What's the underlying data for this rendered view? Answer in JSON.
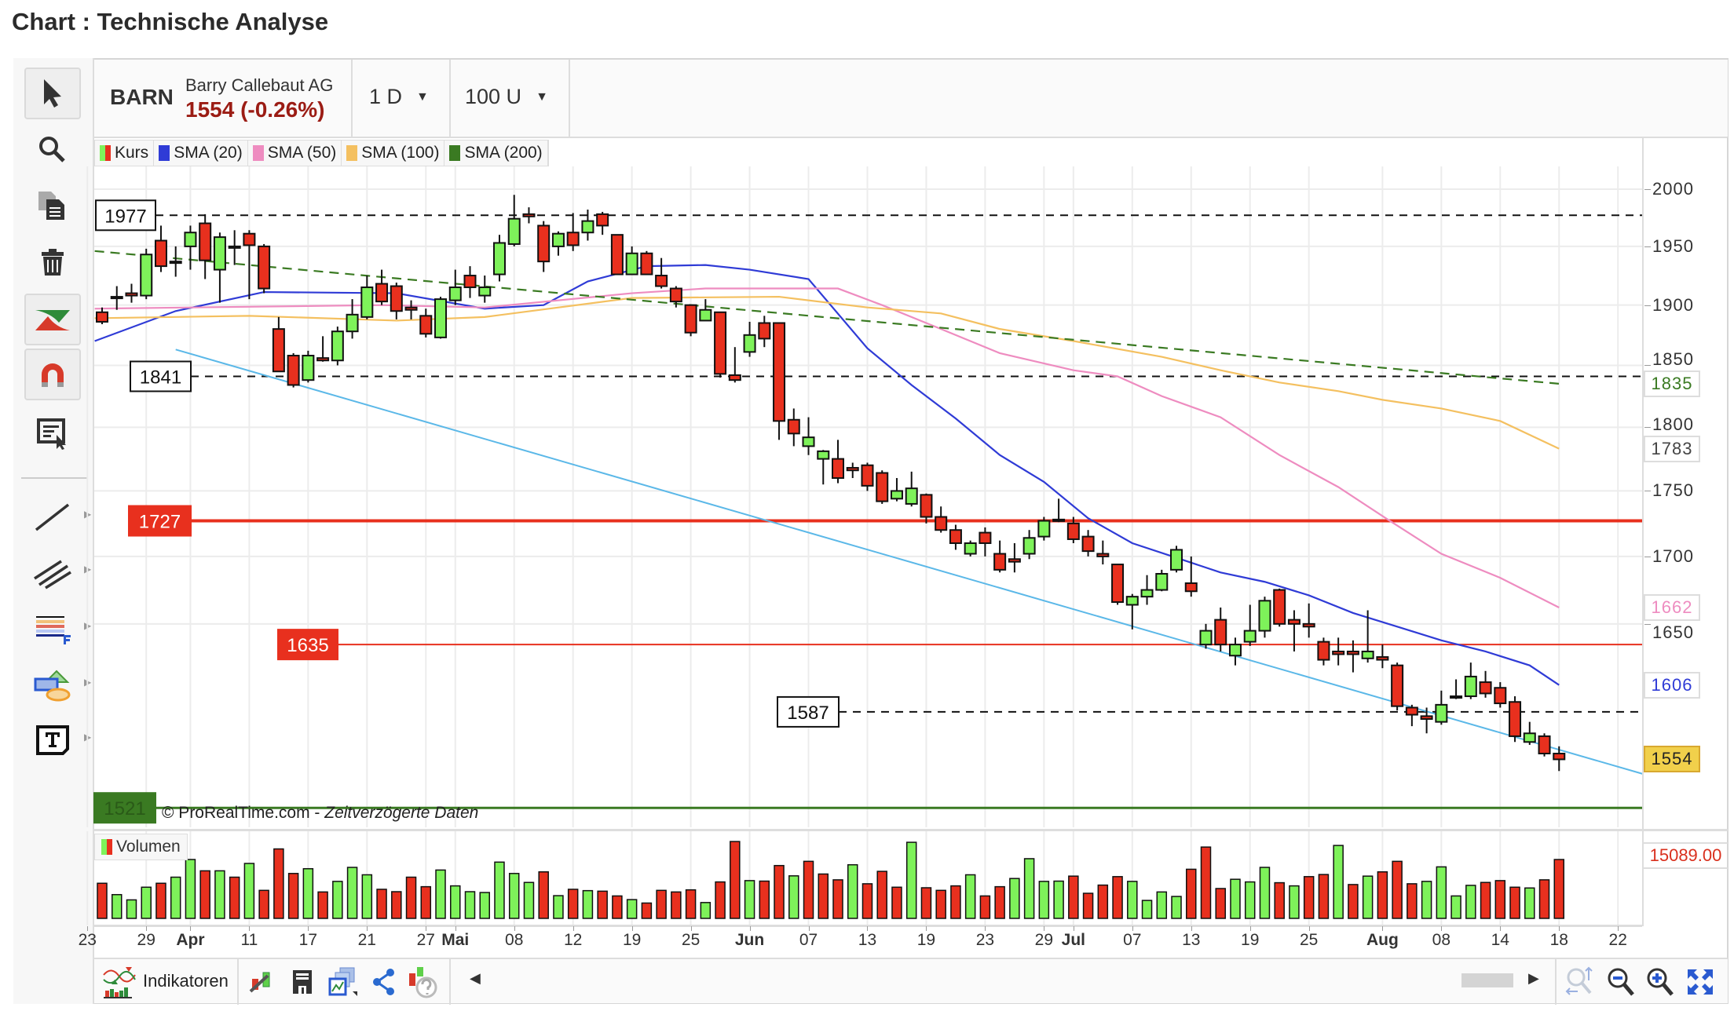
{
  "page_title": "Chart : Technische Analyse",
  "header": {
    "symbol": "BARN",
    "name": "Barry Callebaut AG",
    "price": "1554 (-0.26%)",
    "interval": "1 D",
    "units": "100 U"
  },
  "legend": [
    {
      "label": "Kurs",
      "color": "#e8301e"
    },
    {
      "label": "SMA (20)",
      "color": "#2f3bd6"
    },
    {
      "label": "SMA (50)",
      "color": "#ee8cc0"
    },
    {
      "label": "SMA (100)",
      "color": "#f4c060"
    },
    {
      "label": "SMA (200)",
      "color": "#3a7a22"
    }
  ],
  "price_axis": {
    "ticks": [
      "2000",
      "1950",
      "1900",
      "1850",
      "1800",
      "1750",
      "1700",
      "1650"
    ],
    "tick_values": [
      2000,
      1950,
      1900,
      1850,
      1800,
      1750,
      1700,
      1650
    ]
  },
  "value_boxes": [
    {
      "label": "1835",
      "value": 1835,
      "color": "#3a7a22"
    },
    {
      "label": "1783",
      "value": 1783,
      "color": "#444444"
    },
    {
      "label": "1662",
      "value": 1662,
      "color": "#ee8cc0"
    },
    {
      "label": "1606",
      "value": 1606,
      "color": "#2f3bd6"
    },
    {
      "label": "1554",
      "value": 1554,
      "color": "#222222",
      "bg": "#f1d04b"
    }
  ],
  "levels": [
    {
      "label": "1977",
      "value": 1977,
      "style": "dashed"
    },
    {
      "label": "1841",
      "value": 1841,
      "style": "dashed"
    },
    {
      "label": "1727",
      "value": 1727,
      "style": "red-thick"
    },
    {
      "label": "1635",
      "value": 1635,
      "style": "red-thin"
    },
    {
      "label": "1587",
      "value": 1587,
      "style": "dashed"
    },
    {
      "label": "1521",
      "value": 1521,
      "style": "green"
    }
  ],
  "watermark": {
    "brand": "© ProRealTime.com",
    "sep": " - ",
    "note": "Zeitverzögerte Daten"
  },
  "volume": {
    "label": "Volumen",
    "last": "15089.00",
    "values": [
      9000,
      6090,
      4740,
      7990,
      9000,
      10560,
      15090,
      12190,
      12190,
      10560,
      14080,
      7180,
      17800,
      11510,
      12730,
      6770,
      9480,
      13070,
      11170,
      7450,
      6840,
      10560,
      8120,
      12390,
      8330,
      6840,
      6630,
      14420,
      11510,
      9210,
      11920,
      5820,
      7450,
      7110,
      6970,
      5750,
      4810,
      3930,
      7180,
      6770,
      7310,
      4060,
      9340,
      19700,
      9680,
      9550,
      13540,
      10900,
      14620,
      11370,
      9880,
      13740,
      8870,
      12050,
      7990,
      19500,
      7850,
      7180,
      8330,
      11170,
      5750,
      8120,
      10220,
      15300,
      9480,
      9550,
      10830,
      6430,
      8530,
      10700,
      9480,
      4600,
      6770,
      5620,
      12590,
      18280,
      7650,
      10020,
      9340,
      13070,
      9140,
      8330,
      10700,
      11240,
      18690,
      8670,
      10830,
      11920,
      14620,
      8870,
      9480,
      13200,
      5750,
      8460,
      9210,
      9680,
      7990,
      7790,
      9880,
      15089
    ],
    "colors": "rgggrggrgrgrrrgrgggrrrrgggggggrgrgrrgrrrrgrrgrrgrrrgrrrgrrrgrrggggrrrrggggrrrgggrgrrgrgrrrggggrrrgrr"
  },
  "x_axis": [
    {
      "label": "23",
      "i": -1
    },
    {
      "label": "29",
      "i": 3
    },
    {
      "label": "Apr",
      "i": 6,
      "bold": true
    },
    {
      "label": "11",
      "i": 10
    },
    {
      "label": "17",
      "i": 14
    },
    {
      "label": "21",
      "i": 18
    },
    {
      "label": "27",
      "i": 22
    },
    {
      "label": "Mai",
      "i": 24,
      "bold": true
    },
    {
      "label": "08",
      "i": 28
    },
    {
      "label": "12",
      "i": 32
    },
    {
      "label": "19",
      "i": 36
    },
    {
      "label": "25",
      "i": 40
    },
    {
      "label": "Jun",
      "i": 44,
      "bold": true
    },
    {
      "label": "07",
      "i": 48
    },
    {
      "label": "13",
      "i": 52
    },
    {
      "label": "19",
      "i": 56
    },
    {
      "label": "23",
      "i": 60
    },
    {
      "label": "29",
      "i": 64
    },
    {
      "label": "Jul",
      "i": 66,
      "bold": true
    },
    {
      "label": "07",
      "i": 70
    },
    {
      "label": "13",
      "i": 74
    },
    {
      "label": "19",
      "i": 78
    },
    {
      "label": "25",
      "i": 82
    },
    {
      "label": "Aug",
      "i": 87,
      "bold": true
    },
    {
      "label": "08",
      "i": 91
    },
    {
      "label": "14",
      "i": 95
    },
    {
      "label": "18",
      "i": 99
    },
    {
      "label": "22",
      "i": 103
    }
  ],
  "ohlc": [
    [
      1894,
      1898,
      1884,
      1886
    ],
    [
      1907,
      1916,
      1896,
      1906
    ],
    [
      1910,
      1918,
      1902,
      1908
    ],
    [
      1908,
      1948,
      1905,
      1943
    ],
    [
      1955,
      1968,
      1928,
      1933
    ],
    [
      1937,
      1950,
      1924,
      1936
    ],
    [
      1950,
      1968,
      1930,
      1962
    ],
    [
      1970,
      1978,
      1922,
      1938
    ],
    [
      1930,
      1962,
      1902,
      1958
    ],
    [
      1950,
      1964,
      1934,
      1950
    ],
    [
      1961,
      1964,
      1905,
      1951
    ],
    [
      1950,
      1952,
      1910,
      1914
    ],
    [
      1880,
      1890,
      1845,
      1845
    ],
    [
      1858,
      1860,
      1832,
      1834
    ],
    [
      1838,
      1862,
      1836,
      1858
    ],
    [
      1856,
      1874,
      1853,
      1854
    ],
    [
      1854,
      1882,
      1850,
      1878
    ],
    [
      1878,
      1905,
      1872,
      1892
    ],
    [
      1890,
      1925,
      1888,
      1915
    ],
    [
      1918,
      1930,
      1900,
      1903
    ],
    [
      1916,
      1919,
      1888,
      1895
    ],
    [
      1898,
      1904,
      1888,
      1896
    ],
    [
      1891,
      1897,
      1873,
      1876
    ],
    [
      1873,
      1907,
      1872,
      1905
    ],
    [
      1904,
      1930,
      1900,
      1915
    ],
    [
      1925,
      1933,
      1906,
      1915
    ],
    [
      1908,
      1925,
      1902,
      1915
    ],
    [
      1926,
      1960,
      1920,
      1953
    ],
    [
      1952,
      1995,
      1950,
      1974
    ],
    [
      1978,
      1984,
      1970,
      1976
    ],
    [
      1968,
      1972,
      1928,
      1937
    ],
    [
      1950,
      1963,
      1942,
      1961
    ],
    [
      1962,
      1979,
      1946,
      1951
    ],
    [
      1962,
      1982,
      1955,
      1972
    ],
    [
      1978,
      1980,
      1960,
      1968
    ],
    [
      1960,
      1960,
      1926,
      1926
    ],
    [
      1926,
      1950,
      1926,
      1944
    ],
    [
      1944,
      1946,
      1926,
      1926
    ],
    [
      1925,
      1940,
      1914,
      1916
    ],
    [
      1914,
      1916,
      1898,
      1903
    ],
    [
      1900,
      1900,
      1874,
      1877
    ],
    [
      1887,
      1905,
      1887,
      1896
    ],
    [
      1894,
      1894,
      1840,
      1843
    ],
    [
      1842,
      1865,
      1836,
      1838
    ],
    [
      1861,
      1886,
      1857,
      1875
    ],
    [
      1885,
      1891,
      1865,
      1872
    ],
    [
      1885,
      1885,
      1790,
      1805
    ],
    [
      1806,
      1815,
      1785,
      1795
    ],
    [
      1785,
      1808,
      1778,
      1792
    ],
    [
      1775,
      1782,
      1755,
      1781
    ],
    [
      1775,
      1790,
      1756,
      1760
    ],
    [
      1768,
      1772,
      1760,
      1766
    ],
    [
      1770,
      1772,
      1750,
      1754
    ],
    [
      1764,
      1766,
      1740,
      1742
    ],
    [
      1744,
      1760,
      1742,
      1750
    ],
    [
      1740,
      1765,
      1738,
      1752
    ],
    [
      1747,
      1748,
      1725,
      1730
    ],
    [
      1730,
      1738,
      1718,
      1720
    ],
    [
      1720,
      1724,
      1705,
      1710
    ],
    [
      1702,
      1712,
      1700,
      1710
    ],
    [
      1718,
      1722,
      1700,
      1710
    ],
    [
      1702,
      1712,
      1688,
      1690
    ],
    [
      1698,
      1710,
      1688,
      1696
    ],
    [
      1702,
      1720,
      1698,
      1714
    ],
    [
      1715,
      1730,
      1712,
      1727
    ],
    [
      1727,
      1744,
      1726,
      1728
    ],
    [
      1725,
      1730,
      1710,
      1713
    ],
    [
      1715,
      1720,
      1700,
      1704
    ],
    [
      1702,
      1712,
      1694,
      1700
    ],
    [
      1694,
      1694,
      1664,
      1666
    ],
    [
      1664,
      1672,
      1646,
      1670
    ],
    [
      1670,
      1686,
      1664,
      1675
    ],
    [
      1675,
      1690,
      1674,
      1687
    ],
    [
      1690,
      1708,
      1688,
      1705
    ],
    [
      1680,
      1700,
      1670,
      1674
    ],
    [
      1635,
      1650,
      1632,
      1645
    ],
    [
      1653,
      1662,
      1630,
      1635
    ],
    [
      1627,
      1640,
      1620,
      1635
    ],
    [
      1637,
      1664,
      1634,
      1645
    ],
    [
      1645,
      1670,
      1640,
      1667
    ],
    [
      1675,
      1676,
      1648,
      1650
    ],
    [
      1653,
      1660,
      1630,
      1650
    ],
    [
      1650,
      1665,
      1640,
      1648
    ],
    [
      1637,
      1640,
      1620,
      1624
    ],
    [
      1630,
      1640,
      1620,
      1628
    ],
    [
      1630,
      1638,
      1615,
      1628
    ],
    [
      1625,
      1660,
      1622,
      1630
    ],
    [
      1626,
      1635,
      1618,
      1624
    ],
    [
      1620,
      1622,
      1588,
      1591
    ],
    [
      1590,
      1592,
      1577,
      1585
    ],
    [
      1584,
      1590,
      1572,
      1582
    ],
    [
      1580,
      1602,
      1578,
      1592
    ],
    [
      1597,
      1610,
      1596,
      1598
    ],
    [
      1598,
      1622,
      1596,
      1612
    ],
    [
      1608,
      1616,
      1597,
      1600
    ],
    [
      1604,
      1608,
      1590,
      1593
    ],
    [
      1594,
      1598,
      1566,
      1570
    ],
    [
      1566,
      1580,
      1564,
      1572
    ],
    [
      1570,
      1572,
      1556,
      1558
    ],
    [
      1558,
      1563,
      1546,
      1554
    ]
  ],
  "sma": [
    {
      "name": "SMA (20)",
      "color": "#2f3bd6",
      "dashed": false,
      "points": [
        [
          -0.5,
          1870
        ],
        [
          5,
          1895
        ],
        [
          11,
          1911
        ],
        [
          20,
          1910
        ],
        [
          26,
          1897
        ],
        [
          30,
          1900
        ],
        [
          33,
          1920
        ],
        [
          37,
          1933
        ],
        [
          41,
          1934
        ],
        [
          44,
          1930
        ],
        [
          48,
          1922
        ],
        [
          52,
          1864
        ],
        [
          55,
          1834
        ],
        [
          58,
          1807
        ],
        [
          61,
          1778
        ],
        [
          64,
          1757
        ],
        [
          67,
          1729
        ],
        [
          70,
          1710
        ],
        [
          73,
          1699
        ],
        [
          76,
          1688
        ],
        [
          79,
          1681
        ],
        [
          82,
          1671
        ],
        [
          85,
          1658
        ],
        [
          88,
          1648
        ],
        [
          91,
          1638
        ],
        [
          94,
          1630
        ],
        [
          97,
          1620
        ],
        [
          99,
          1606
        ]
      ]
    },
    {
      "name": "SMA (50)",
      "color": "#ee8cc0",
      "dashed": false,
      "points": [
        [
          -0.5,
          1897
        ],
        [
          19,
          1900
        ],
        [
          26,
          1898
        ],
        [
          36,
          1910
        ],
        [
          41,
          1914
        ],
        [
          50,
          1914
        ],
        [
          53,
          1900
        ],
        [
          57,
          1880
        ],
        [
          61,
          1860
        ],
        [
          66,
          1846
        ],
        [
          69,
          1841
        ],
        [
          72,
          1825
        ],
        [
          76,
          1808
        ],
        [
          80,
          1778
        ],
        [
          84,
          1753
        ],
        [
          87.5,
          1727
        ],
        [
          91,
          1702
        ],
        [
          95,
          1684
        ],
        [
          99,
          1662
        ]
      ]
    },
    {
      "name": "SMA (100)",
      "color": "#f4c060",
      "dashed": false,
      "points": [
        [
          -0.5,
          1889
        ],
        [
          10,
          1891
        ],
        [
          20,
          1887
        ],
        [
          26,
          1890
        ],
        [
          36,
          1906
        ],
        [
          46,
          1907
        ],
        [
          52,
          1898
        ],
        [
          57,
          1893
        ],
        [
          61,
          1880
        ],
        [
          66,
          1870
        ],
        [
          72,
          1857
        ],
        [
          76,
          1846
        ],
        [
          80,
          1836
        ],
        [
          84,
          1829
        ],
        [
          87,
          1822
        ],
        [
          91,
          1815
        ],
        [
          95,
          1805
        ],
        [
          99,
          1783
        ]
      ]
    },
    {
      "name": "SMA (200)",
      "color": "#3a7a22",
      "dashed": true,
      "points": [
        [
          -0.5,
          1946
        ],
        [
          99,
          1835
        ]
      ]
    }
  ],
  "trendline": {
    "color": "#5bb8e8",
    "points": [
      [
        5,
        1863
      ],
      [
        104.7,
        1544
      ]
    ]
  },
  "bottom_toolbar": {
    "indicators_label": "Indikatoren"
  }
}
